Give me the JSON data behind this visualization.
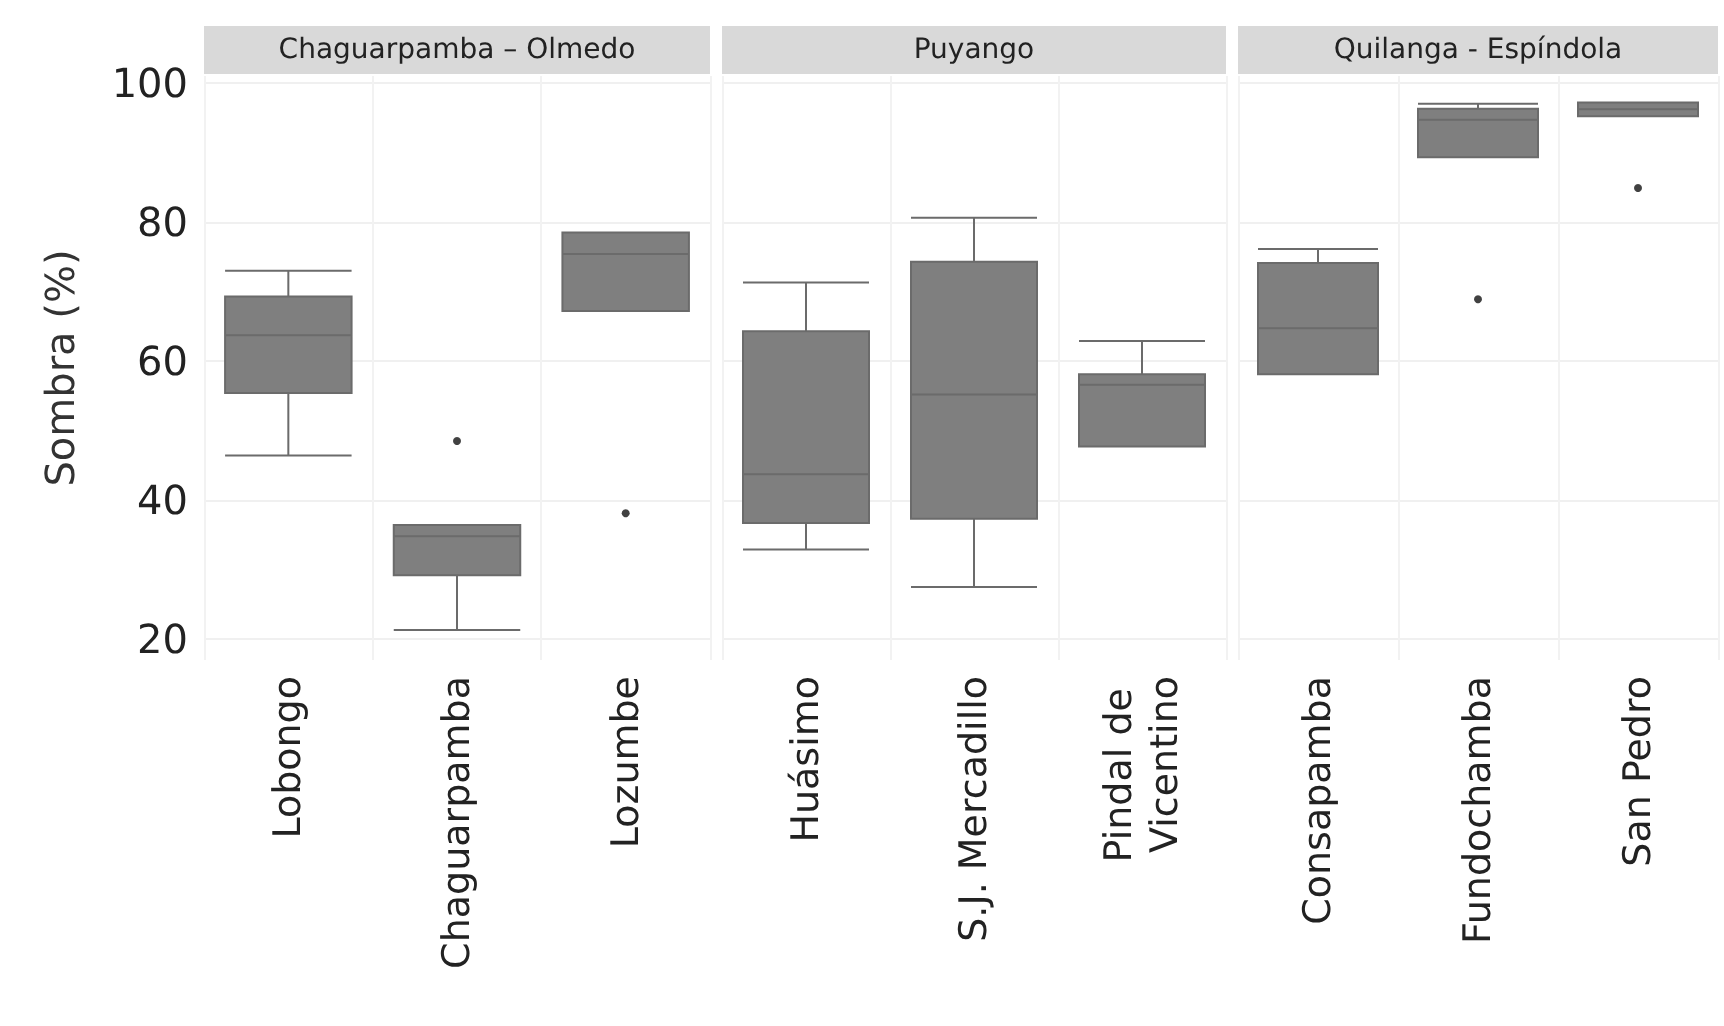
{
  "chart_data": [
    {
      "type": "box",
      "title": "Chaguarpamba – Olmedo",
      "ylabel": "Sombra (%)",
      "categories": [
        "Lobongo",
        "Chaguarpamba",
        "Lozumbe"
      ],
      "color": "#7f7f7f",
      "ylim": [
        17,
        101
      ],
      "yticks": [
        20,
        40,
        60,
        80,
        100
      ],
      "grid": true,
      "boxes": [
        {
          "low": 46.4,
          "q1": 55.4,
          "median": 63.7,
          "q3": 69.3,
          "high": 73.0
        },
        {
          "low": 21.3,
          "q1": 29.2,
          "median": 34.8,
          "q3": 36.4,
          "high": 36.4,
          "outliers": [
            48.5
          ]
        },
        {
          "low": 67.2,
          "q1": 67.2,
          "median": 75.4,
          "q3": 78.5,
          "high": 78.5,
          "outliers": [
            38.1
          ]
        }
      ]
    },
    {
      "type": "box",
      "title": "Puyango",
      "categories": [
        "Huásimo",
        "S.J. Mercadillo",
        "Pindal de Vicentino"
      ],
      "color": "#7f7f7f",
      "ylim": [
        17,
        101
      ],
      "yticks": [
        20,
        40,
        60,
        80,
        100
      ],
      "grid": true,
      "tick_labels": "x",
      "boxes": [
        {
          "low": 32.9,
          "q1": 36.7,
          "median": 43.7,
          "q3": 64.3,
          "high": 71.3
        },
        {
          "low": 27.5,
          "q1": 37.3,
          "median": 55.2,
          "q3": 74.3,
          "high": 80.6
        },
        {
          "low": 47.7,
          "q1": 47.7,
          "median": 56.6,
          "q3": 58.1,
          "high": 62.9
        }
      ]
    },
    {
      "type": "box",
      "title": "Quilanga - Espíndola",
      "categories": [
        "Consapamba",
        "Fundochamba",
        "San Pedro"
      ],
      "color": "#7f7f7f",
      "ylim": [
        17,
        101
      ],
      "yticks": [
        20,
        40,
        60,
        80,
        100
      ],
      "grid": true,
      "tick_labels": "x",
      "boxes": [
        {
          "low": 58.1,
          "q1": 58.1,
          "median": 64.7,
          "q3": 74.1,
          "high": 76.1
        },
        {
          "low": 89.3,
          "q1": 89.3,
          "median": 94.7,
          "q3": 96.3,
          "high": 97.0,
          "outliers": [
            68.9
          ]
        },
        {
          "low": 95.2,
          "q1": 95.2,
          "median": 96.2,
          "q3": 97.2,
          "high": 97.2,
          "outliers": [
            84.9
          ]
        }
      ]
    }
  ]
}
